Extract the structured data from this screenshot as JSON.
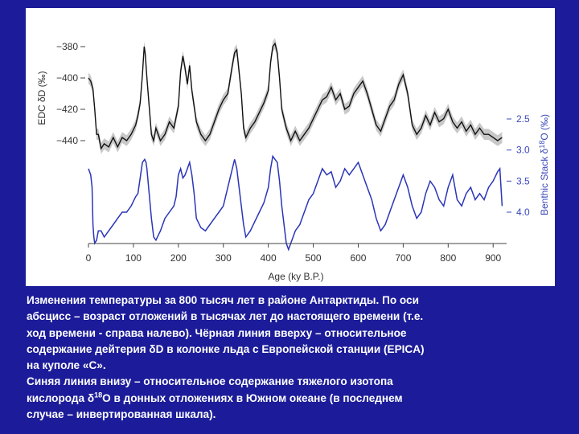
{
  "colors": {
    "background": "#1c1c9a",
    "panel": "#ffffff",
    "deuterium_line": "#111111",
    "deuterium_band": "#9a9a9a",
    "benthic_line": "#2a35b8",
    "right_axis_text": "#3a48b8"
  },
  "chart_data": {
    "type": "line",
    "x": {
      "label": "Age (ky B.P.)",
      "ticks": [
        "0",
        "100",
        "200",
        "300",
        "400",
        "500",
        "600",
        "700",
        "800",
        "900"
      ],
      "range": [
        0,
        930
      ]
    },
    "y_left": {
      "label_prefix": "EDC δD (",
      "label_unit": "‰",
      "label_suffix": ")",
      "ticks": [
        "−380",
        "−400",
        "−420",
        "−440"
      ],
      "range": [
        -452,
        -366
      ]
    },
    "y_right": {
      "label_prefix": "Benthic Stack δ",
      "label_sup": "18",
      "label_suffix": "O (‰)",
      "ticks": [
        "2.5",
        "3.0",
        "3.5",
        "4.0"
      ],
      "range": [
        2.2,
        4.7
      ],
      "inverted": true
    },
    "grid": false,
    "legend": "none",
    "series": [
      {
        "id": "deuterium",
        "axis": "left",
        "x": [
          0,
          5,
          10,
          14,
          18,
          22,
          28,
          35,
          45,
          55,
          65,
          75,
          85,
          95,
          105,
          110,
          115,
          120,
          124,
          126,
          130,
          135,
          140,
          145,
          150,
          160,
          170,
          180,
          190,
          200,
          205,
          210,
          215,
          220,
          225,
          230,
          240,
          250,
          260,
          270,
          280,
          290,
          300,
          310,
          320,
          325,
          330,
          335,
          340,
          345,
          350,
          360,
          370,
          380,
          390,
          400,
          405,
          410,
          415,
          420,
          425,
          430,
          440,
          450,
          460,
          470,
          480,
          490,
          500,
          510,
          520,
          530,
          540,
          550,
          560,
          570,
          580,
          590,
          600,
          610,
          620,
          630,
          640,
          650,
          660,
          670,
          680,
          690,
          700,
          710,
          720,
          730,
          740,
          750,
          760,
          770,
          780,
          790,
          800,
          810,
          820,
          830,
          840,
          850,
          860,
          870,
          880,
          890,
          900,
          910,
          920
        ],
        "y": [
          -400,
          -402,
          -407,
          -420,
          -436,
          -436,
          -445,
          -442,
          -444,
          -438,
          -444,
          -438,
          -440,
          -436,
          -430,
          -424,
          -416,
          -398,
          -380,
          -384,
          -400,
          -418,
          -436,
          -440,
          -432,
          -440,
          -436,
          -428,
          -432,
          -418,
          -396,
          -386,
          -394,
          -404,
          -392,
          -408,
          -428,
          -436,
          -440,
          -436,
          -428,
          -420,
          -414,
          -410,
          -392,
          -384,
          -382,
          -396,
          -410,
          -432,
          -438,
          -432,
          -428,
          -422,
          -416,
          -408,
          -390,
          -380,
          -378,
          -384,
          -400,
          -420,
          -432,
          -440,
          -434,
          -440,
          -436,
          -432,
          -426,
          -420,
          -414,
          -412,
          -406,
          -414,
          -410,
          -420,
          -418,
          -410,
          -406,
          -402,
          -410,
          -420,
          -430,
          -434,
          -426,
          -418,
          -414,
          -404,
          -398,
          -410,
          -430,
          -436,
          -432,
          -424,
          -430,
          -422,
          -428,
          -426,
          -420,
          -428,
          -432,
          -428,
          -434,
          -430,
          -436,
          -432,
          -436,
          -436,
          -438,
          -440,
          -438
        ],
        "band_halfwidth": 3.5
      },
      {
        "id": "benthic",
        "axis": "right",
        "x": [
          0,
          5,
          8,
          10,
          12,
          14,
          18,
          22,
          28,
          35,
          45,
          55,
          65,
          75,
          85,
          95,
          105,
          110,
          115,
          120,
          125,
          128,
          130,
          135,
          140,
          145,
          150,
          160,
          170,
          180,
          190,
          195,
          200,
          205,
          210,
          215,
          220,
          225,
          230,
          235,
          240,
          250,
          260,
          270,
          280,
          290,
          300,
          310,
          320,
          325,
          330,
          335,
          340,
          345,
          350,
          360,
          370,
          380,
          390,
          400,
          405,
          410,
          415,
          420,
          425,
          430,
          435,
          440,
          445,
          450,
          460,
          470,
          480,
          490,
          500,
          510,
          520,
          530,
          540,
          550,
          560,
          570,
          580,
          590,
          600,
          610,
          620,
          630,
          640,
          650,
          660,
          670,
          680,
          690,
          700,
          710,
          720,
          730,
          740,
          750,
          760,
          770,
          780,
          790,
          800,
          810,
          820,
          830,
          840,
          850,
          860,
          870,
          880,
          890,
          900,
          910,
          915,
          920
        ],
        "y": [
          3.3,
          3.4,
          3.6,
          4.2,
          4.4,
          4.5,
          4.45,
          4.3,
          4.3,
          4.4,
          4.3,
          4.2,
          4.1,
          4.0,
          4.0,
          3.9,
          3.75,
          3.7,
          3.45,
          3.2,
          3.15,
          3.2,
          3.3,
          3.7,
          4.1,
          4.4,
          4.45,
          4.3,
          4.1,
          4.0,
          3.9,
          3.75,
          3.4,
          3.3,
          3.45,
          3.4,
          3.3,
          3.2,
          3.4,
          3.7,
          4.1,
          4.25,
          4.3,
          4.2,
          4.1,
          4.0,
          3.9,
          3.6,
          3.3,
          3.15,
          3.3,
          3.6,
          3.9,
          4.2,
          4.4,
          4.3,
          4.15,
          4.0,
          3.85,
          3.6,
          3.3,
          3.1,
          3.15,
          3.2,
          3.5,
          3.9,
          4.2,
          4.5,
          4.6,
          4.5,
          4.3,
          4.2,
          4.0,
          3.8,
          3.7,
          3.5,
          3.3,
          3.4,
          3.35,
          3.6,
          3.5,
          3.3,
          3.4,
          3.3,
          3.2,
          3.4,
          3.6,
          3.8,
          4.1,
          4.3,
          4.2,
          4.0,
          3.8,
          3.6,
          3.4,
          3.6,
          3.9,
          4.1,
          4.0,
          3.7,
          3.5,
          3.6,
          3.8,
          3.9,
          3.6,
          3.4,
          3.8,
          3.9,
          3.7,
          3.6,
          3.8,
          3.7,
          3.8,
          3.6,
          3.5,
          3.35,
          3.3,
          3.9
        ]
      }
    ]
  },
  "caption": {
    "line1": "Изменения температуры за 800 тысяч лет в районе Антарктиды. По оси",
    "line2": "абсцисс – возраст отложений в тысячах лет до настоящего времени (т.е.",
    "line3": "ход времени - справа налево). Чёрная линия вверху – относительное",
    "line4": "содержание дейтерия δD в колонке льда с Европейской станции (EPICA)",
    "line5": "на куполе «С».",
    "line6": "Синяя линия внизу – относительное содержание тяжелого изотопа",
    "line7_before": "кислорода δ",
    "line7_sup": "18",
    "line7_after": "O в донных отложениях в Южном океане (в последнем",
    "line8": "случае – инвертированная шкала)."
  }
}
